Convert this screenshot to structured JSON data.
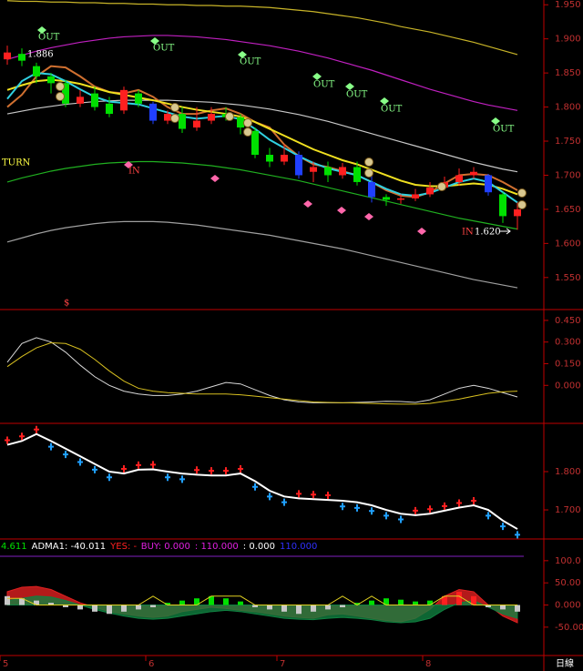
{
  "period": "日線",
  "chart_data": [
    {
      "type": "candlestick",
      "open": [
        1.87,
        1.878,
        1.86,
        1.845,
        1.835,
        1.805,
        1.82,
        1.805,
        1.795,
        1.82,
        1.805,
        1.78,
        1.79,
        1.77,
        1.78,
        1.79,
        1.785,
        1.765,
        1.73,
        1.72,
        1.73,
        1.705,
        1.712,
        1.7,
        1.712,
        1.69,
        1.668,
        1.664,
        1.666,
        1.672,
        1.682,
        1.69,
        1.7,
        1.7,
        1.672,
        1.64
      ],
      "high": [
        1.89,
        1.886,
        1.865,
        1.85,
        1.84,
        1.825,
        1.83,
        1.815,
        1.83,
        1.825,
        1.808,
        1.795,
        1.8,
        1.8,
        1.8,
        1.8,
        1.79,
        1.77,
        1.74,
        1.745,
        1.735,
        1.72,
        1.72,
        1.718,
        1.72,
        1.7,
        1.672,
        1.672,
        1.68,
        1.69,
        1.698,
        1.71,
        1.712,
        1.702,
        1.675,
        1.66
      ],
      "low": [
        1.862,
        1.86,
        1.835,
        1.82,
        1.8,
        1.8,
        1.795,
        1.785,
        1.79,
        1.8,
        1.775,
        1.775,
        1.762,
        1.765,
        1.775,
        1.78,
        1.76,
        1.725,
        1.712,
        1.715,
        1.695,
        1.69,
        1.69,
        1.695,
        1.685,
        1.66,
        1.655,
        1.658,
        1.662,
        1.668,
        1.678,
        1.685,
        1.695,
        1.67,
        1.63,
        1.62
      ],
      "close": [
        1.88,
        1.868,
        1.845,
        1.835,
        1.805,
        1.815,
        1.8,
        1.79,
        1.825,
        1.805,
        1.78,
        1.79,
        1.768,
        1.78,
        1.79,
        1.785,
        1.77,
        1.73,
        1.72,
        1.73,
        1.7,
        1.712,
        1.7,
        1.712,
        1.69,
        1.668,
        1.664,
        1.666,
        1.672,
        1.682,
        1.69,
        1.7,
        1.705,
        1.675,
        1.64,
        1.65
      ],
      "colors": [
        "#ff2020",
        "#00e000",
        "#00e000",
        "#00e000",
        "#00e000",
        "#ff2020",
        "#00e000",
        "#00e000",
        "#ff2020",
        "#00e000",
        "#2040ff",
        "#ff2020",
        "#00e000",
        "#ff2020",
        "#ff2020",
        "#00e000",
        "#00e000",
        "#00e000",
        "#00e000",
        "#ff2020",
        "#2040ff",
        "#ff2020",
        "#00e000",
        "#ff2020",
        "#00e000",
        "#2040ff",
        "#00e000",
        "#ff2020",
        "#ff2020",
        "#ff2020",
        "#ff2020",
        "#ff2020",
        "#ff2020",
        "#2040ff",
        "#00e000",
        "#ff2020"
      ],
      "series": [
        {
          "color": "#c8b428",
          "values": [
            1.956,
            1.955,
            1.955,
            1.954,
            1.954,
            1.953,
            1.953,
            1.952,
            1.952,
            1.951,
            1.951,
            1.95,
            1.95,
            1.949,
            1.949,
            1.948,
            1.948,
            1.947,
            1.946,
            1.944,
            1.942,
            1.94,
            1.937,
            1.934,
            1.931,
            1.927,
            1.923,
            1.918,
            1.914,
            1.91,
            1.905,
            1.9,
            1.895,
            1.889,
            1.883,
            1.877
          ]
        },
        {
          "color": "#c020c0",
          "values": [
            1.87,
            1.876,
            1.882,
            1.887,
            1.891,
            1.895,
            1.898,
            1.901,
            1.903,
            1.904,
            1.905,
            1.905,
            1.904,
            1.903,
            1.901,
            1.899,
            1.896,
            1.893,
            1.89,
            1.886,
            1.882,
            1.877,
            1.872,
            1.866,
            1.86,
            1.854,
            1.847,
            1.84,
            1.833,
            1.826,
            1.82,
            1.814,
            1.808,
            1.803,
            1.799,
            1.795
          ]
        },
        {
          "color": "#c8c8c8",
          "values": [
            1.79,
            1.794,
            1.798,
            1.801,
            1.804,
            1.806,
            1.808,
            1.809,
            1.81,
            1.81,
            1.81,
            1.81,
            1.809,
            1.808,
            1.807,
            1.805,
            1.803,
            1.8,
            1.797,
            1.793,
            1.789,
            1.784,
            1.779,
            1.773,
            1.767,
            1.761,
            1.755,
            1.749,
            1.743,
            1.737,
            1.731,
            1.725,
            1.719,
            1.714,
            1.709,
            1.705
          ]
        },
        {
          "color": "#20b020",
          "values": [
            1.69,
            1.696,
            1.701,
            1.706,
            1.71,
            1.713,
            1.716,
            1.718,
            1.719,
            1.72,
            1.72,
            1.719,
            1.718,
            1.716,
            1.714,
            1.711,
            1.708,
            1.704,
            1.7,
            1.696,
            1.692,
            1.687,
            1.682,
            1.677,
            1.672,
            1.667,
            1.662,
            1.657,
            1.652,
            1.647,
            1.642,
            1.637,
            1.633,
            1.629,
            1.625,
            1.621
          ]
        },
        {
          "color": "#a0a0a0",
          "values": [
            1.602,
            1.608,
            1.614,
            1.619,
            1.623,
            1.626,
            1.629,
            1.631,
            1.632,
            1.632,
            1.632,
            1.631,
            1.629,
            1.627,
            1.624,
            1.621,
            1.618,
            1.615,
            1.612,
            1.608,
            1.604,
            1.6,
            1.596,
            1.592,
            1.587,
            1.582,
            1.577,
            1.572,
            1.567,
            1.562,
            1.557,
            1.552,
            1.547,
            1.543,
            1.539,
            1.535
          ]
        },
        {
          "color": "#d07030",
          "values": [
            1.8,
            1.818,
            1.845,
            1.86,
            1.858,
            1.845,
            1.83,
            1.822,
            1.82,
            1.825,
            1.815,
            1.8,
            1.79,
            1.79,
            1.795,
            1.798,
            1.79,
            1.778,
            1.77,
            1.745,
            1.728,
            1.716,
            1.712,
            1.706,
            1.7,
            1.69,
            1.678,
            1.67,
            1.668,
            1.675,
            1.688,
            1.7,
            1.702,
            1.7,
            1.69,
            1.678
          ]
        },
        {
          "color": "#f0e020",
          "values": [
            1.825,
            1.832,
            1.838,
            1.84,
            1.838,
            1.834,
            1.828,
            1.822,
            1.818,
            1.814,
            1.81,
            1.805,
            1.8,
            1.796,
            1.793,
            1.79,
            1.786,
            1.778,
            1.768,
            1.758,
            1.748,
            1.738,
            1.73,
            1.722,
            1.716,
            1.708,
            1.7,
            1.692,
            1.686,
            1.684,
            1.684,
            1.686,
            1.688,
            1.686,
            1.68,
            1.672
          ]
        },
        {
          "color": "#30d0e0",
          "values": [
            1.812,
            1.838,
            1.85,
            1.848,
            1.838,
            1.826,
            1.815,
            1.808,
            1.806,
            1.804,
            1.798,
            1.792,
            1.786,
            1.783,
            1.785,
            1.787,
            1.782,
            1.768,
            1.752,
            1.74,
            1.728,
            1.718,
            1.71,
            1.705,
            1.7,
            1.69,
            1.68,
            1.672,
            1.67,
            1.674,
            1.682,
            1.69,
            1.695,
            1.69,
            1.675,
            1.66
          ]
        }
      ],
      "annotations": [
        "OUT",
        "OUT",
        "OUT",
        "OUT",
        "OUT",
        "OUT",
        "OUT",
        "IN",
        "IN",
        "TURN",
        "1.886",
        "1.620",
        "$"
      ],
      "ylim": [
        1.503,
        1.957
      ],
      "yticks": [
        {
          "value": 1.95,
          "label": "1.950"
        },
        {
          "value": 1.9,
          "label": "1.900"
        },
        {
          "value": 1.85,
          "label": "1.850"
        },
        {
          "value": 1.8,
          "label": "1.800"
        },
        {
          "value": 1.75,
          "label": "1.750"
        },
        {
          "value": 1.7,
          "label": "1.700"
        },
        {
          "value": 1.65,
          "label": "1.650"
        },
        {
          "value": 1.6,
          "label": "1.600"
        },
        {
          "value": 1.55,
          "label": "1.550"
        }
      ]
    },
    {
      "type": "line",
      "series": [
        {
          "color": "#d8d8d8",
          "values": [
            0.16,
            0.29,
            0.33,
            0.3,
            0.23,
            0.14,
            0.06,
            0.0,
            -0.04,
            -0.06,
            -0.07,
            -0.07,
            -0.06,
            -0.04,
            -0.01,
            0.02,
            0.01,
            -0.03,
            -0.07,
            -0.1,
            -0.115,
            -0.12,
            -0.12,
            -0.12,
            -0.118,
            -0.115,
            -0.11,
            -0.112,
            -0.118,
            -0.1,
            -0.06,
            -0.02,
            0.0,
            -0.02,
            -0.05,
            -0.08
          ]
        },
        {
          "color": "#d8c020",
          "values": [
            0.13,
            0.2,
            0.26,
            0.295,
            0.29,
            0.25,
            0.18,
            0.1,
            0.03,
            -0.02,
            -0.04,
            -0.05,
            -0.055,
            -0.06,
            -0.06,
            -0.06,
            -0.065,
            -0.075,
            -0.085,
            -0.095,
            -0.105,
            -0.115,
            -0.118,
            -0.12,
            -0.122,
            -0.125,
            -0.128,
            -0.13,
            -0.13,
            -0.125,
            -0.11,
            -0.095,
            -0.075,
            -0.055,
            -0.045,
            -0.04
          ]
        }
      ],
      "ylim": [
        -0.263,
        0.525
      ],
      "yticks": [
        {
          "value": 0.45,
          "label": "0.450"
        },
        {
          "value": 0.3,
          "label": "0.300"
        },
        {
          "value": 0.15,
          "label": "0.150"
        },
        {
          "value": 0,
          "label": "0.000"
        }
      ]
    },
    {
      "type": "line",
      "series": [
        {
          "color": "#ffffff",
          "values": [
            1.87,
            1.88,
            1.898,
            1.88,
            1.86,
            1.84,
            1.82,
            1.8,
            1.795,
            1.805,
            1.806,
            1.8,
            1.795,
            1.792,
            1.79,
            1.79,
            1.795,
            1.775,
            1.75,
            1.735,
            1.73,
            1.728,
            1.726,
            1.724,
            1.72,
            1.712,
            1.7,
            1.69,
            1.686,
            1.69,
            1.698,
            1.706,
            1.712,
            1.7,
            1.672,
            1.65
          ]
        }
      ],
      "dots": [
        1.882,
        1.892,
        1.91,
        1.865,
        1.845,
        1.825,
        1.805,
        1.785,
        1.807,
        1.817,
        1.818,
        1.785,
        1.78,
        1.804,
        1.802,
        1.802,
        1.807,
        1.76,
        1.735,
        1.72,
        1.742,
        1.74,
        1.738,
        1.709,
        1.705,
        1.697,
        1.685,
        1.675,
        1.698,
        1.702,
        1.71,
        1.718,
        1.724,
        1.685,
        1.657,
        1.635
      ],
      "dot_colors": [
        "#ff2020",
        "#ff2020",
        "#ff2020",
        "#20a0ff",
        "#20a0ff",
        "#20a0ff",
        "#20a0ff",
        "#20a0ff",
        "#ff2020",
        "#ff2020",
        "#ff2020",
        "#20a0ff",
        "#20a0ff",
        "#ff2020",
        "#ff2020",
        "#ff2020",
        "#ff2020",
        "#20a0ff",
        "#20a0ff",
        "#20a0ff",
        "#ff2020",
        "#ff2020",
        "#ff2020",
        "#20a0ff",
        "#20a0ff",
        "#20a0ff",
        "#20a0ff",
        "#20a0ff",
        "#ff2020",
        "#ff2020",
        "#ff2020",
        "#ff2020",
        "#ff2020",
        "#20a0ff",
        "#20a0ff",
        "#20a0ff"
      ],
      "ylim": [
        1.624,
        1.926
      ],
      "yticks": [
        {
          "value": 1.8,
          "label": "1.800"
        },
        {
          "value": 1.7,
          "label": "1.700"
        }
      ]
    },
    {
      "type": "bar",
      "header": [
        {
          "text": "4.611",
          "color": "#00e000"
        },
        {
          "text": "ADMA1: -40.011",
          "color": "#ffffff"
        },
        {
          "text": "YES: -",
          "color": "#ff2020"
        },
        {
          "text": "BUY: 0.000",
          "color": "#e020e0"
        },
        {
          "text": ": 110.000",
          "color": "#e020e0"
        },
        {
          "text": ": 0.000",
          "color": "#ffffff"
        },
        {
          "text": "110.000",
          "color": "#3030ff"
        }
      ],
      "ref_level": 110,
      "ref_color": "#8020c0",
      "values": [
        20,
        15,
        10,
        5,
        -5,
        -10,
        -15,
        -20,
        -15,
        -10,
        -5,
        5,
        10,
        15,
        20,
        15,
        8,
        -5,
        -10,
        -15,
        -20,
        -15,
        -10,
        -5,
        5,
        10,
        15,
        12,
        8,
        10,
        20,
        30,
        20,
        -5,
        -10,
        -15
      ],
      "colors": [
        "#c8c8c8",
        "#c8c8c8",
        "#c8c8c8",
        "#c8c8c8",
        "#c8c8c8",
        "#c8c8c8",
        "#c8c8c8",
        "#c8c8c8",
        "#c8c8c8",
        "#c8c8c8",
        "#c8c8c8",
        "#00e000",
        "#00e000",
        "#00e000",
        "#00e000",
        "#00e000",
        "#00e000",
        "#c8c8c8",
        "#c8c8c8",
        "#c8c8c8",
        "#c8c8c8",
        "#c8c8c8",
        "#c8c8c8",
        "#c8c8c8",
        "#00e000",
        "#00e000",
        "#00e000",
        "#00e000",
        "#00e000",
        "#00e000",
        "#ff2020",
        "#ff2020",
        "#ff2020",
        "#c8c8c8",
        "#c8c8c8",
        "#c8c8c8"
      ],
      "series": [
        {
          "color": "#e02020",
          "values": [
            30,
            40,
            42,
            35,
            20,
            5,
            -5,
            -15,
            -20,
            -25,
            -28,
            -25,
            -15,
            -10,
            -5,
            -8,
            -12,
            -15,
            -20,
            -25,
            -28,
            -30,
            -22,
            -20,
            -25,
            -30,
            -35,
            -38,
            -30,
            -10,
            20,
            35,
            30,
            0,
            -25,
            -40
          ]
        },
        {
          "color": "#108040",
          "values": [
            10,
            15,
            20,
            18,
            10,
            0,
            -10,
            -18,
            -25,
            -30,
            -32,
            -30,
            -25,
            -20,
            -15,
            -12,
            -15,
            -20,
            -25,
            -30,
            -32,
            -33,
            -30,
            -28,
            -30,
            -33,
            -38,
            -40,
            -38,
            -30,
            -10,
            5,
            10,
            -5,
            -20,
            -30
          ]
        },
        {
          "color": "#e0d020",
          "values": [
            15,
            15,
            0,
            0,
            0,
            0,
            0,
            0,
            0,
            0,
            20,
            0,
            0,
            0,
            20,
            20,
            20,
            0,
            0,
            0,
            0,
            0,
            0,
            20,
            0,
            20,
            0,
            0,
            0,
            0,
            20,
            20,
            0,
            0,
            0,
            0
          ]
        }
      ],
      "categories": [
        "5",
        null,
        null,
        null,
        null,
        null,
        null,
        null,
        null,
        null,
        "6",
        null,
        null,
        null,
        null,
        null,
        null,
        null,
        null,
        "7",
        null,
        null,
        null,
        null,
        null,
        null,
        null,
        null,
        null,
        "8",
        null,
        null,
        null,
        null,
        null,
        null
      ],
      "ylim": [
        -114,
        149
      ],
      "yticks": [
        {
          "value": 100,
          "label": "100.0"
        },
        {
          "value": 50,
          "label": "50.00"
        },
        {
          "value": 0,
          "label": "0.000"
        },
        {
          "value": -50,
          "label": "-50.00"
        }
      ]
    }
  ]
}
